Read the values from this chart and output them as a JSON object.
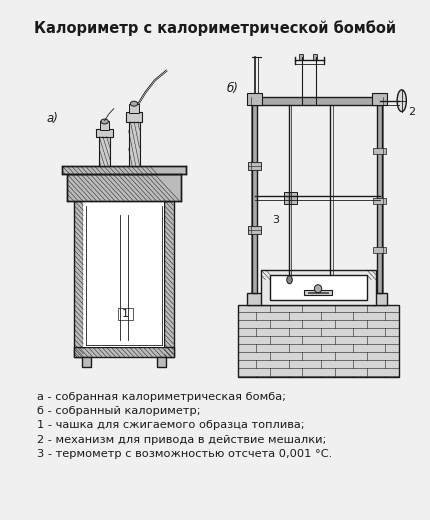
{
  "title": "Калориметр с калориметрической бомбой",
  "title_fontsize": 10.5,
  "title_fontweight": "bold",
  "bg_color": "#f0f0f0",
  "text_color": "#1a1a1a",
  "legend_lines": [
    "а - собранная калориметрическая бомба;",
    "б - собранный калориметр;",
    "1 - чашка для сжигаемого образца топлива;",
    "2 - механизм для привода в действие мешалки;",
    "3 - термометр с возможностью отсчета 0,001 °C."
  ],
  "legend_fontsize": 8.2,
  "label_a": "а)",
  "label_b": "б)",
  "figsize": [
    4.3,
    5.2
  ],
  "dpi": 100
}
